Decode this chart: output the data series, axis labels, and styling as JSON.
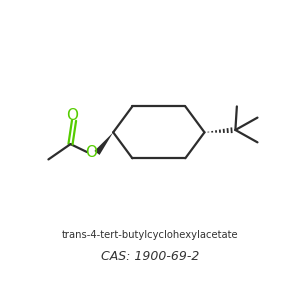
{
  "title1": "trans-4-tert-butylcyclohexylacetate",
  "title2": "CAS: 1900-69-2",
  "bg_color": "#ffffff",
  "line_color": "#2d2d2d",
  "green_color": "#55cc00",
  "title1_fontsize": 7.2,
  "title2_fontsize": 9.0,
  "figsize": [
    3.0,
    3.0
  ],
  "dpi": 100
}
